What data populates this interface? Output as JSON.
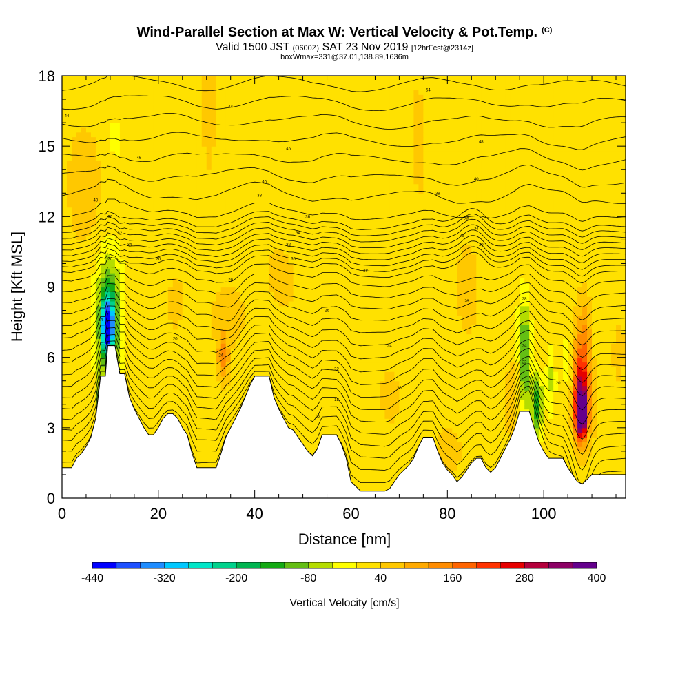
{
  "header": {
    "title": "Wind-Parallel Section at Max W: Vertical Velocity & Pot.Temp.",
    "title_unit": "(C)",
    "valid_prefix": "Valid 1500 JST",
    "valid_utc": "(0600Z)",
    "valid_date": "SAT 23 Nov 2019",
    "forecast": "[12hrFcst@2314z]",
    "boxinfo": "boxWmax=331@37.01,138.89,1636m"
  },
  "chart_data": {
    "type": "heatmap",
    "xlabel": "Distance [nm]",
    "ylabel": "Height [Kft MSL]",
    "xlim": [
      0,
      117
    ],
    "ylim": [
      0,
      18
    ],
    "x_ticks": [
      "0",
      "20",
      "40",
      "60",
      "80",
      "100"
    ],
    "y_ticks": [
      "0",
      "3",
      "6",
      "9",
      "12",
      "15",
      "18"
    ],
    "colorbar": {
      "label": "Vertical Velocity [cm/s]",
      "range": [
        -440,
        400
      ],
      "tick_labels": [
        "-440",
        "-320",
        "-200",
        "-80",
        "40",
        "160",
        "280",
        "400"
      ],
      "colors": [
        "#0000ff",
        "#1e50ff",
        "#1e8cff",
        "#00c8ff",
        "#00e6c8",
        "#00d28c",
        "#00b450",
        "#14aa14",
        "#64be14",
        "#b4dc00",
        "#ffff00",
        "#ffe100",
        "#ffc800",
        "#ffaa00",
        "#ff8c00",
        "#ff6400",
        "#ff3200",
        "#e60000",
        "#b4003c",
        "#8c0064",
        "#64008c"
      ]
    },
    "terrain_nm_kft": [
      [
        0,
        1.3
      ],
      [
        2,
        1.3
      ],
      [
        3,
        1.7
      ],
      [
        4,
        1.9
      ],
      [
        5,
        2.2
      ],
      [
        6,
        2.6
      ],
      [
        7,
        3.4
      ],
      [
        8,
        5.2
      ],
      [
        9,
        5.2
      ],
      [
        9.5,
        6.5
      ],
      [
        11,
        6.5
      ],
      [
        12,
        5.3
      ],
      [
        13,
        5.3
      ],
      [
        14,
        4.3
      ],
      [
        15,
        3.8
      ],
      [
        16,
        3.4
      ],
      [
        17,
        3.0
      ],
      [
        18,
        2.7
      ],
      [
        19,
        2.7
      ],
      [
        20,
        3.0
      ],
      [
        21,
        3.4
      ],
      [
        22,
        3.6
      ],
      [
        23,
        3.6
      ],
      [
        24,
        3.4
      ],
      [
        25,
        3.0
      ],
      [
        26,
        2.7
      ],
      [
        27,
        1.9
      ],
      [
        28,
        1.3
      ],
      [
        32,
        1.3
      ],
      [
        33,
        1.9
      ],
      [
        34,
        2.6
      ],
      [
        35,
        3.0
      ],
      [
        36,
        3.4
      ],
      [
        37,
        3.8
      ],
      [
        38,
        4.3
      ],
      [
        39,
        4.8
      ],
      [
        40,
        5.2
      ],
      [
        43,
        5.2
      ],
      [
        44,
        4.3
      ],
      [
        45,
        3.8
      ],
      [
        46,
        3.4
      ],
      [
        47,
        3.0
      ],
      [
        48,
        2.9
      ],
      [
        49,
        2.6
      ],
      [
        50,
        2.3
      ],
      [
        51,
        2.0
      ],
      [
        52,
        1.8
      ],
      [
        53,
        2.1
      ],
      [
        54,
        2.7
      ],
      [
        57,
        2.7
      ],
      [
        58,
        2.3
      ],
      [
        59,
        1.7
      ],
      [
        60,
        0.7
      ],
      [
        61,
        0.5
      ],
      [
        62,
        0.3
      ],
      [
        67,
        0.3
      ],
      [
        68,
        0.4
      ],
      [
        69,
        0.7
      ],
      [
        70,
        1.0
      ],
      [
        71,
        1.2
      ],
      [
        72,
        1.4
      ],
      [
        73,
        1.7
      ],
      [
        74,
        2.2
      ],
      [
        75,
        2.6
      ],
      [
        77,
        2.6
      ],
      [
        78,
        2.0
      ],
      [
        79,
        1.5
      ],
      [
        80,
        1.2
      ],
      [
        81,
        1.0
      ],
      [
        82,
        0.7
      ],
      [
        83,
        0.9
      ],
      [
        84,
        1.2
      ],
      [
        85,
        1.5
      ],
      [
        86,
        1.7
      ],
      [
        87,
        1.7
      ],
      [
        88,
        1.3
      ],
      [
        89,
        1.1
      ],
      [
        90,
        1.3
      ],
      [
        91,
        1.7
      ],
      [
        92,
        2.1
      ],
      [
        93,
        2.5
      ],
      [
        94,
        3.0
      ],
      [
        95,
        3.7
      ],
      [
        97,
        3.7
      ],
      [
        98,
        3.0
      ],
      [
        99,
        2.4
      ],
      [
        100,
        2.0
      ],
      [
        101,
        1.7
      ],
      [
        104,
        1.7
      ],
      [
        105,
        1.3
      ],
      [
        106,
        1.0
      ],
      [
        107,
        0.7
      ],
      [
        108,
        0.6
      ],
      [
        109,
        0.8
      ],
      [
        110,
        1.0
      ],
      [
        117,
        1.0
      ]
    ],
    "cells": [
      {
        "x": 9.5,
        "y": 7.3,
        "sx": 1.2,
        "sy": 1.1,
        "w": -380
      },
      {
        "x": 9.8,
        "y": 7.8,
        "sx": 2.6,
        "sy": 2.4,
        "w": -200
      },
      {
        "x": 7.8,
        "y": 4.2,
        "sx": 1.0,
        "sy": 1.4,
        "w": -110
      },
      {
        "x": 11.0,
        "y": 15.5,
        "sx": 0.6,
        "sy": 1.5,
        "w": -60
      },
      {
        "x": 23.5,
        "y": 8.3,
        "sx": 1.6,
        "sy": 1.1,
        "w": 55
      },
      {
        "x": 33.5,
        "y": 6.0,
        "sx": 1.2,
        "sy": 1.0,
        "w": 110
      },
      {
        "x": 35.5,
        "y": 7.8,
        "sx": 3.0,
        "sy": 1.0,
        "w": 50
      },
      {
        "x": 96.0,
        "y": 6.0,
        "sx": 1.2,
        "sy": 2.4,
        "w": -160
      },
      {
        "x": 98.5,
        "y": 4.0,
        "sx": 1.2,
        "sy": 1.3,
        "w": -180
      },
      {
        "x": 101.5,
        "y": 5.2,
        "sx": 1.0,
        "sy": 1.5,
        "w": -70
      },
      {
        "x": 107.8,
        "y": 3.6,
        "sx": 1.1,
        "sy": 0.9,
        "w": 380
      },
      {
        "x": 107.8,
        "y": 4.6,
        "sx": 1.7,
        "sy": 1.9,
        "w": 260
      },
      {
        "x": 108.5,
        "y": 7.2,
        "sx": 1.5,
        "sy": 1.6,
        "w": 70
      },
      {
        "x": 105.0,
        "y": 6.0,
        "sx": 0.8,
        "sy": 1.8,
        "w": -60
      },
      {
        "x": 4.5,
        "y": 13.5,
        "sx": 3.0,
        "sy": 2.5,
        "w": 35
      },
      {
        "x": 30.5,
        "y": 15.5,
        "sx": 1.5,
        "sy": 3.0,
        "w": 30
      },
      {
        "x": 84.0,
        "y": 9.2,
        "sx": 1.8,
        "sy": 1.6,
        "w": 45
      },
      {
        "x": 68.0,
        "y": 4.0,
        "sx": 3.0,
        "sy": 1.6,
        "w": 30
      },
      {
        "x": 81.0,
        "y": 2.0,
        "sx": 2.5,
        "sy": 1.0,
        "w": 35
      },
      {
        "x": 93.5,
        "y": 4.5,
        "sx": 1.2,
        "sy": 1.5,
        "w": 45
      },
      {
        "x": 74.0,
        "y": 16.0,
        "sx": 1.5,
        "sy": 2.5,
        "w": 30
      },
      {
        "x": 115.5,
        "y": 6.3,
        "sx": 1.3,
        "sy": 1.2,
        "w": 40
      },
      {
        "x": 45.0,
        "y": 9.5,
        "sx": 3.0,
        "sy": 1.4,
        "w": 30
      }
    ],
    "isentrope_labels": [
      {
        "x": 1,
        "y": 16.3,
        "text": "44"
      },
      {
        "x": 35,
        "y": 16.7,
        "text": "44"
      },
      {
        "x": 76,
        "y": 17.4,
        "text": "64"
      },
      {
        "x": 16,
        "y": 14.5,
        "text": "46"
      },
      {
        "x": 47,
        "y": 14.9,
        "text": "46"
      },
      {
        "x": 87,
        "y": 15.2,
        "text": "48"
      },
      {
        "x": 42,
        "y": 13.5,
        "text": "40"
      },
      {
        "x": 86,
        "y": 13.6,
        "text": "40"
      },
      {
        "x": 7,
        "y": 12.7,
        "text": "40"
      },
      {
        "x": 41,
        "y": 12.9,
        "text": "38"
      },
      {
        "x": 78,
        "y": 13.0,
        "text": "38"
      },
      {
        "x": 10,
        "y": 12.0,
        "text": "36"
      },
      {
        "x": 51,
        "y": 12.0,
        "text": "36"
      },
      {
        "x": 84,
        "y": 11.9,
        "text": "36"
      },
      {
        "x": 12,
        "y": 11.3,
        "text": "32"
      },
      {
        "x": 49,
        "y": 11.3,
        "text": "34"
      },
      {
        "x": 86,
        "y": 11.5,
        "text": "34"
      },
      {
        "x": 14,
        "y": 10.8,
        "text": "34"
      },
      {
        "x": 47,
        "y": 10.8,
        "text": "32"
      },
      {
        "x": 83,
        "y": 11.2,
        "text": "32"
      },
      {
        "x": 10,
        "y": 10.2,
        "text": "30"
      },
      {
        "x": 20,
        "y": 10.2,
        "text": "30"
      },
      {
        "x": 48,
        "y": 10.2,
        "text": "30"
      },
      {
        "x": 87,
        "y": 10.8,
        "text": "30"
      },
      {
        "x": 35,
        "y": 9.3,
        "text": "28"
      },
      {
        "x": 63,
        "y": 9.7,
        "text": "28"
      },
      {
        "x": 96,
        "y": 8.5,
        "text": "28"
      },
      {
        "x": 55,
        "y": 8.0,
        "text": "26"
      },
      {
        "x": 84,
        "y": 8.4,
        "text": "26"
      },
      {
        "x": 8,
        "y": 7.6,
        "text": "24"
      },
      {
        "x": 23.5,
        "y": 6.8,
        "text": "20"
      },
      {
        "x": 68,
        "y": 6.5,
        "text": "24"
      },
      {
        "x": 96,
        "y": 6.5,
        "text": "24"
      },
      {
        "x": 33,
        "y": 6.1,
        "text": "24"
      },
      {
        "x": 57,
        "y": 5.5,
        "text": "22"
      },
      {
        "x": 96,
        "y": 5.8,
        "text": "22"
      },
      {
        "x": 70,
        "y": 4.7,
        "text": "20"
      },
      {
        "x": 103,
        "y": 4.9,
        "text": "20"
      },
      {
        "x": 57,
        "y": 4.2,
        "text": "18"
      },
      {
        "x": 53,
        "y": 3.5,
        "text": "16"
      }
    ]
  }
}
